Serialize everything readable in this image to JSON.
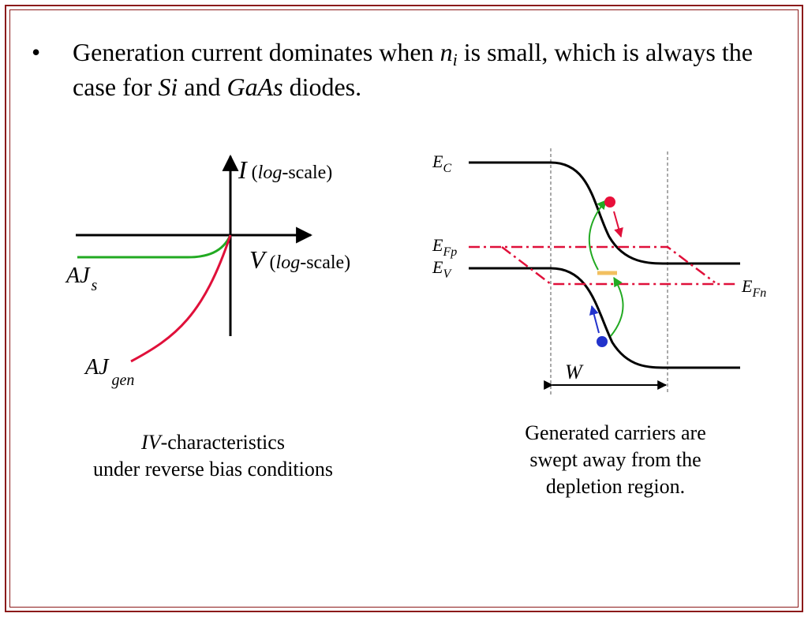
{
  "bullet": {
    "marker": "•",
    "text_before_ni": "Generation current dominates when ",
    "ni_base": "n",
    "ni_sub": "i",
    "text_after_ni": " is small, which is always the case for ",
    "si": "Si",
    "and": " and ",
    "gaas": "GaAs",
    "tail": " diodes."
  },
  "iv_plot": {
    "y_label_symbol": "I",
    "y_label_open": " (",
    "y_label_log": "log",
    "y_label_scale": "-scale)",
    "x_label_symbol": "V",
    "x_label_open": " (",
    "x_label_log": "log",
    "x_label_scale": "-scale)",
    "curve_s_label": "AJ",
    "curve_s_sub": "s",
    "curve_gen_label": "AJ",
    "curve_gen_sub": "gen",
    "colors": {
      "axes": "#000000",
      "saturation_curve": "#22aa22",
      "generation_curve": "#e0103a"
    }
  },
  "band_diagram": {
    "ec_base": "E",
    "ec_sub": "C",
    "efp_base": "E",
    "efp_sub": "Fp",
    "ev_base": "E",
    "ev_sub": "V",
    "efn_base": "E",
    "efn_sub": "Fn",
    "width_label": "W",
    "colors": {
      "bands": "#000000",
      "quasi_fermi": "#e0103a",
      "electron": "#e8103a",
      "hole": "#2233cc",
      "arrow_gen": "#22aa22",
      "trap": "#f2c060"
    }
  },
  "captions": {
    "left_line1_italic": "IV",
    "left_line1_rest": "-characteristics",
    "left_line2": "under reverse bias conditions",
    "right_line1": "Generated carriers are",
    "right_line2": "swept away from the",
    "right_line3": "depletion region."
  }
}
